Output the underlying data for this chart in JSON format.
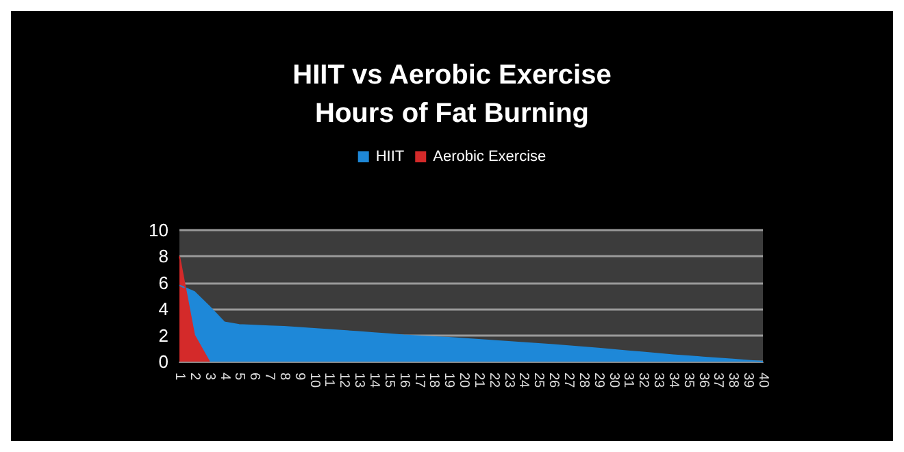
{
  "chart_data": {
    "type": "area",
    "title": "HIIT vs Aerobic Exercise\nHours of Fat Burning",
    "categories": [
      "1",
      "2",
      "3",
      "4",
      "5",
      "6",
      "7",
      "8",
      "9",
      "10",
      "11",
      "12",
      "13",
      "14",
      "15",
      "16",
      "17",
      "18",
      "19",
      "20",
      "21",
      "22",
      "23",
      "24",
      "25",
      "26",
      "27",
      "28",
      "29",
      "30",
      "31",
      "32",
      "33",
      "34",
      "35",
      "36",
      "37",
      "38",
      "39",
      "40"
    ],
    "series": [
      {
        "name": "HIIT",
        "color": "#1e88d8",
        "values": [
          5.8,
          5.3,
          4.2,
          3.0,
          2.8,
          2.75,
          2.7,
          2.65,
          2.58,
          2.5,
          2.42,
          2.34,
          2.26,
          2.18,
          2.1,
          2.0,
          1.94,
          1.88,
          1.82,
          1.75,
          1.67,
          1.59,
          1.51,
          1.43,
          1.35,
          1.27,
          1.19,
          1.1,
          1.0,
          0.9,
          0.8,
          0.7,
          0.6,
          0.5,
          0.42,
          0.33,
          0.25,
          0.17,
          0.08,
          0
        ]
      },
      {
        "name": "Aerobic Exercise",
        "color": "#d42a2a",
        "values": [
          8,
          2,
          0,
          null,
          null,
          null,
          null,
          null,
          null,
          null,
          null,
          null,
          null,
          null,
          null,
          null,
          null,
          null,
          null,
          null,
          null,
          null,
          null,
          null,
          null,
          null,
          null,
          null,
          null,
          null,
          null,
          null,
          null,
          null,
          null,
          null,
          null,
          null,
          null,
          null
        ]
      }
    ],
    "ylim": [
      0,
      10
    ],
    "yticks": [
      0,
      2,
      4,
      6,
      8,
      10
    ],
    "grid": "y",
    "legend": "top"
  }
}
